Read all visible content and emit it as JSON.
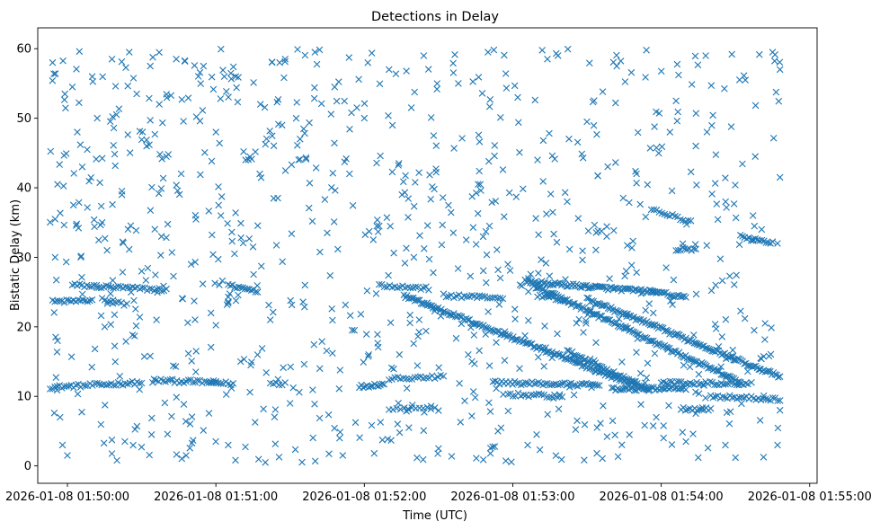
{
  "chart_data": {
    "type": "scatter",
    "title": "Detections in Delay",
    "xlabel": "Time (UTC)",
    "ylabel": "Bistatic Delay (km)",
    "marker": "x",
    "color": "#1f77b4",
    "grid": false,
    "legend": "none",
    "xlim": [
      "2026-01-08 01:49:48",
      "2026-01-08 01:55:03"
    ],
    "ylim": [
      -2.5,
      63
    ],
    "x_ticks": [
      "2026-01-08 01:50:00",
      "2026-01-08 01:51:00",
      "2026-01-08 01:52:00",
      "2026-01-08 01:53:00",
      "2026-01-08 01:54:00",
      "2026-01-08 01:55:00"
    ],
    "y_ticks": [
      "0",
      "10",
      "20",
      "30",
      "40",
      "50",
      "60"
    ],
    "data_start": "2026-01-08 01:49:53",
    "data_end": "2026-01-08 01:54:48",
    "tracks": [
      {
        "t0": "2026-01-08 01:49:53",
        "t1": "2026-01-08 01:50:30",
        "d0": 11.3,
        "d1": 12.0,
        "n": 40
      },
      {
        "t0": "2026-01-08 01:49:54",
        "t1": "2026-01-08 01:50:10",
        "d0": 23.6,
        "d1": 23.8,
        "n": 18
      },
      {
        "t0": "2026-01-08 01:50:02",
        "t1": "2026-01-08 01:50:40",
        "d0": 26.0,
        "d1": 25.3,
        "n": 40
      },
      {
        "t0": "2026-01-08 01:50:14",
        "t1": "2026-01-08 01:50:24",
        "d0": 24.0,
        "d1": 23.2,
        "n": 10
      },
      {
        "t0": "2026-01-08 01:50:35",
        "t1": "2026-01-08 01:51:00",
        "d0": 12.3,
        "d1": 12.0,
        "n": 28
      },
      {
        "t0": "2026-01-08 01:50:58",
        "t1": "2026-01-08 01:51:07",
        "d0": 12.0,
        "d1": 11.8,
        "n": 10
      },
      {
        "t0": "2026-01-08 01:51:05",
        "t1": "2026-01-08 01:51:16",
        "d0": 26.0,
        "d1": 25.2,
        "n": 14
      },
      {
        "t0": "2026-01-08 01:51:22",
        "t1": "2026-01-08 01:51:28",
        "d0": 12.0,
        "d1": 11.8,
        "n": 6
      },
      {
        "t0": "2026-01-08 01:51:58",
        "t1": "2026-01-08 01:52:08",
        "d0": 11.4,
        "d1": 11.8,
        "n": 14
      },
      {
        "t0": "2026-01-08 01:52:06",
        "t1": "2026-01-08 01:52:26",
        "d0": 26.0,
        "d1": 25.5,
        "n": 20
      },
      {
        "t0": "2026-01-08 01:52:10",
        "t1": "2026-01-08 01:52:32",
        "d0": 12.5,
        "d1": 12.8,
        "n": 20
      },
      {
        "t0": "2026-01-08 01:52:10",
        "t1": "2026-01-08 01:52:30",
        "d0": 8.2,
        "d1": 8.2,
        "n": 14
      },
      {
        "t0": "2026-01-08 01:52:16",
        "t1": "2026-01-08 01:53:50",
        "d0": 24.5,
        "d1": 11.5,
        "n": 150
      },
      {
        "t0": "2026-01-08 01:52:32",
        "t1": "2026-01-08 01:52:56",
        "d0": 24.5,
        "d1": 24.2,
        "n": 24
      },
      {
        "t0": "2026-01-08 01:52:52",
        "t1": "2026-01-08 01:53:35",
        "d0": 12.0,
        "d1": 11.6,
        "n": 50
      },
      {
        "t0": "2026-01-08 01:52:58",
        "t1": "2026-01-08 01:53:20",
        "d0": 10.3,
        "d1": 10.0,
        "n": 22
      },
      {
        "t0": "2026-01-08 01:53:05",
        "t1": "2026-01-08 01:53:58",
        "d0": 26.5,
        "d1": 25.0,
        "n": 80
      },
      {
        "t0": "2026-01-08 01:53:08",
        "t1": "2026-01-08 01:54:32",
        "d0": 26.0,
        "d1": 12.0,
        "n": 130
      },
      {
        "t0": "2026-01-08 01:53:10",
        "t1": "2026-01-08 01:53:22",
        "d0": 24.5,
        "d1": 23.8,
        "n": 14
      },
      {
        "t0": "2026-01-08 01:53:22",
        "t1": "2026-01-08 01:53:55",
        "d0": 16.5,
        "d1": 11.0,
        "n": 50
      },
      {
        "t0": "2026-01-08 01:53:30",
        "t1": "2026-01-08 01:54:48",
        "d0": 24.0,
        "d1": 12.8,
        "n": 120
      },
      {
        "t0": "2026-01-08 01:53:40",
        "t1": "2026-01-08 01:54:10",
        "d0": 11.0,
        "d1": 11.2,
        "n": 40
      },
      {
        "t0": "2026-01-08 01:53:56",
        "t1": "2026-01-08 01:54:10",
        "d0": 25.0,
        "d1": 24.3,
        "n": 20
      },
      {
        "t0": "2026-01-08 01:54:00",
        "t1": "2026-01-08 01:54:35",
        "d0": 12.0,
        "d1": 11.8,
        "n": 40
      },
      {
        "t0": "2026-01-08 01:54:08",
        "t1": "2026-01-08 01:54:20",
        "d0": 8.2,
        "d1": 8.2,
        "n": 14
      },
      {
        "t0": "2026-01-08 01:54:20",
        "t1": "2026-01-08 01:54:48",
        "d0": 10.0,
        "d1": 9.6,
        "n": 30
      },
      {
        "t0": "2026-01-08 01:54:32",
        "t1": "2026-01-08 01:54:45",
        "d0": 33.0,
        "d1": 32.0,
        "n": 16
      },
      {
        "t0": "2026-01-08 01:54:06",
        "t1": "2026-01-08 01:54:14",
        "d0": 31.2,
        "d1": 31.2,
        "n": 10
      },
      {
        "t0": "2026-01-08 01:53:56",
        "t1": "2026-01-08 01:54:12",
        "d0": 37.0,
        "d1": 35.0,
        "n": 16
      }
    ],
    "random_points": [
      [
        "2026-01-08 01:49:54",
        58.0
      ],
      [
        "2026-01-08 01:49:56",
        40.5
      ],
      [
        "2026-01-08 01:49:55",
        35.5
      ],
      [
        "2026-01-08 01:49:55",
        30.0
      ],
      [
        "2026-01-08 01:49:56",
        18.0
      ],
      [
        "2026-01-08 01:49:57",
        7.0
      ],
      [
        "2026-01-08 01:49:58",
        3.0
      ],
      [
        "2026-01-08 01:50:00",
        1.5
      ],
      [
        "2026-01-08 01:50:02",
        54.5
      ],
      [
        "2026-01-08 01:50:04",
        48.0
      ],
      [
        "2026-01-08 01:50:06",
        43.0
      ],
      [
        "2026-01-08 01:50:08",
        45.5
      ],
      [
        "2026-01-08 01:50:10",
        56.0
      ],
      [
        "2026-01-08 01:50:12",
        50.0
      ],
      [
        "2026-01-08 01:50:14",
        35.0
      ],
      [
        "2026-01-08 01:50:16",
        31.0
      ],
      [
        "2026-01-08 01:50:18",
        58.5
      ],
      [
        "2026-01-08 01:50:20",
        0.8
      ],
      [
        "2026-01-08 01:50:22",
        39.0
      ],
      [
        "2026-01-08 01:50:25",
        59.5
      ],
      [
        "2026-01-08 01:50:28",
        53.5
      ],
      [
        "2026-01-08 01:50:30",
        28.0
      ],
      [
        "2026-01-08 01:50:32",
        46.0
      ],
      [
        "2026-01-08 01:50:34",
        4.5
      ],
      [
        "2026-01-08 01:50:36",
        21.0
      ],
      [
        "2026-01-08 01:50:38",
        33.0
      ],
      [
        "2026-01-08 01:50:40",
        44.5
      ],
      [
        "2026-01-08 01:50:44",
        58.5
      ],
      [
        "2026-01-08 01:50:46",
        42.0
      ],
      [
        "2026-01-08 01:50:48",
        1.5
      ],
      [
        "2026-01-08 01:50:50",
        29.0
      ],
      [
        "2026-01-08 01:50:52",
        16.5
      ],
      [
        "2026-01-08 01:50:55",
        57.5
      ],
      [
        "2026-01-08 01:50:58",
        22.0
      ],
      [
        "2026-01-08 01:51:00",
        48.0
      ],
      [
        "2026-01-08 01:51:02",
        36.0
      ],
      [
        "2026-01-08 01:51:05",
        3.0
      ],
      [
        "2026-01-08 01:51:08",
        56.0
      ],
      [
        "2026-01-08 01:51:10",
        15.0
      ],
      [
        "2026-01-08 01:51:12",
        44.0
      ],
      [
        "2026-01-08 01:51:15",
        31.5
      ],
      [
        "2026-01-08 01:51:18",
        52.0
      ],
      [
        "2026-01-08 01:51:20",
        0.5
      ],
      [
        "2026-01-08 01:51:22",
        21.0
      ],
      [
        "2026-01-08 01:51:25",
        38.5
      ],
      [
        "2026-01-08 01:51:28",
        58.5
      ],
      [
        "2026-01-08 01:51:30",
        9.0
      ],
      [
        "2026-01-08 01:51:34",
        47.0
      ],
      [
        "2026-01-08 01:51:36",
        26.0
      ],
      [
        "2026-01-08 01:51:40",
        59.5
      ],
      [
        "2026-01-08 01:51:42",
        14.0
      ],
      [
        "2026-01-08 01:51:45",
        33.5
      ],
      [
        "2026-01-08 01:51:48",
        54.5
      ],
      [
        "2026-01-08 01:51:50",
        4.0
      ],
      [
        "2026-01-08 01:51:54",
        42.0
      ],
      [
        "2026-01-08 01:51:56",
        19.5
      ],
      [
        "2026-01-08 01:52:00",
        50.0
      ],
      [
        "2026-01-08 01:52:04",
        1.8
      ],
      [
        "2026-01-08 01:52:06",
        34.5
      ],
      [
        "2026-01-08 01:52:10",
        57.0
      ],
      [
        "2026-01-08 01:52:14",
        43.5
      ],
      [
        "2026-01-08 01:52:18",
        5.5
      ],
      [
        "2026-01-08 01:52:20",
        30.0
      ],
      [
        "2026-01-08 01:52:24",
        59.0
      ],
      [
        "2026-01-08 01:52:28",
        47.5
      ],
      [
        "2026-01-08 01:52:30",
        2.5
      ],
      [
        "2026-01-08 01:52:34",
        37.5
      ],
      [
        "2026-01-08 01:52:38",
        55.0
      ],
      [
        "2026-01-08 01:52:42",
        16.0
      ],
      [
        "2026-01-08 01:52:46",
        40.5
      ],
      [
        "2026-01-08 01:52:50",
        59.5
      ],
      [
        "2026-01-08 01:52:54",
        5.0
      ],
      [
        "2026-01-08 01:52:58",
        29.0
      ],
      [
        "2026-01-08 01:53:02",
        53.0
      ],
      [
        "2026-01-08 01:53:06",
        3.0
      ],
      [
        "2026-01-08 01:53:10",
        44.0
      ],
      [
        "2026-01-08 01:53:14",
        58.5
      ],
      [
        "2026-01-08 01:53:18",
        19.0
      ],
      [
        "2026-01-08 01:53:22",
        38.0
      ],
      [
        "2026-01-08 01:53:26",
        6.5
      ],
      [
        "2026-01-08 01:53:30",
        49.5
      ],
      [
        "2026-01-08 01:53:34",
        1.8
      ],
      [
        "2026-01-08 01:53:38",
        33.0
      ],
      [
        "2026-01-08 01:53:42",
        57.5
      ],
      [
        "2026-01-08 01:53:46",
        21.5
      ],
      [
        "2026-01-08 01:53:50",
        42.0
      ],
      [
        "2026-01-08 01:53:54",
        59.8
      ],
      [
        "2026-01-08 01:53:58",
        7.0
      ],
      [
        "2026-01-08 01:54:02",
        28.5
      ],
      [
        "2026-01-08 01:54:06",
        52.5
      ],
      [
        "2026-01-08 01:54:10",
        3.5
      ],
      [
        "2026-01-08 01:54:14",
        46.0
      ],
      [
        "2026-01-08 01:54:18",
        59.0
      ],
      [
        "2026-01-08 01:54:22",
        26.0
      ],
      [
        "2026-01-08 01:54:26",
        38.0
      ],
      [
        "2026-01-08 01:54:30",
        1.2
      ],
      [
        "2026-01-08 01:54:34",
        55.5
      ],
      [
        "2026-01-08 01:54:38",
        44.5
      ],
      [
        "2026-01-08 01:54:42",
        20.5
      ],
      [
        "2026-01-08 01:54:45",
        59.5
      ],
      [
        "2026-01-08 01:54:47",
        3.0
      ],
      [
        "2026-01-08 01:54:48",
        57.0
      ],
      [
        "2026-01-08 01:54:48",
        41.5
      ],
      [
        "2026-01-08 01:54:47",
        32.0
      ],
      [
        "2026-01-08 01:54:48",
        8.0
      ]
    ],
    "random_fill": {
      "count": 820,
      "seed": 12345,
      "d_range": [
        0.5,
        60
      ]
    }
  }
}
